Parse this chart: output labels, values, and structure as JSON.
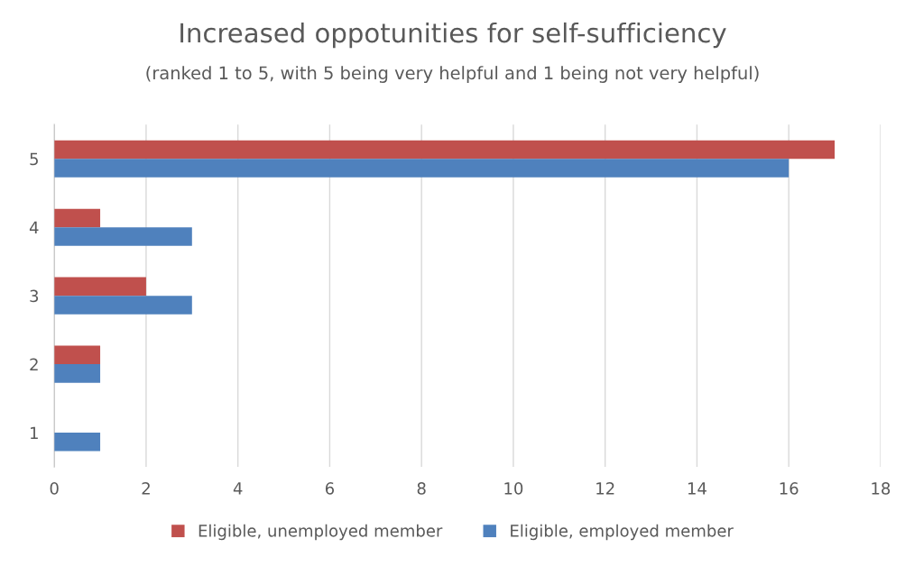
{
  "chart_data": {
    "type": "bar",
    "orientation": "horizontal",
    "title": "Increased oppotunities for self-sufficiency",
    "subtitle": "(ranked 1 to 5, with 5 being very helpful and 1 being not very helpful)",
    "categories": [
      "5",
      "4",
      "3",
      "2",
      "1"
    ],
    "series": [
      {
        "name": "Eligible, unemployed member",
        "color": "#c0504d",
        "values": [
          17,
          1,
          2,
          1,
          0
        ]
      },
      {
        "name": "Eligible, employed member",
        "color": "#4f81bd",
        "values": [
          16,
          3,
          3,
          1,
          1
        ]
      }
    ],
    "xlim": [
      0,
      18
    ],
    "xticks": [
      0,
      2,
      4,
      6,
      8,
      10,
      12,
      14,
      16,
      18
    ],
    "grid": "x",
    "legend": "bottom"
  }
}
